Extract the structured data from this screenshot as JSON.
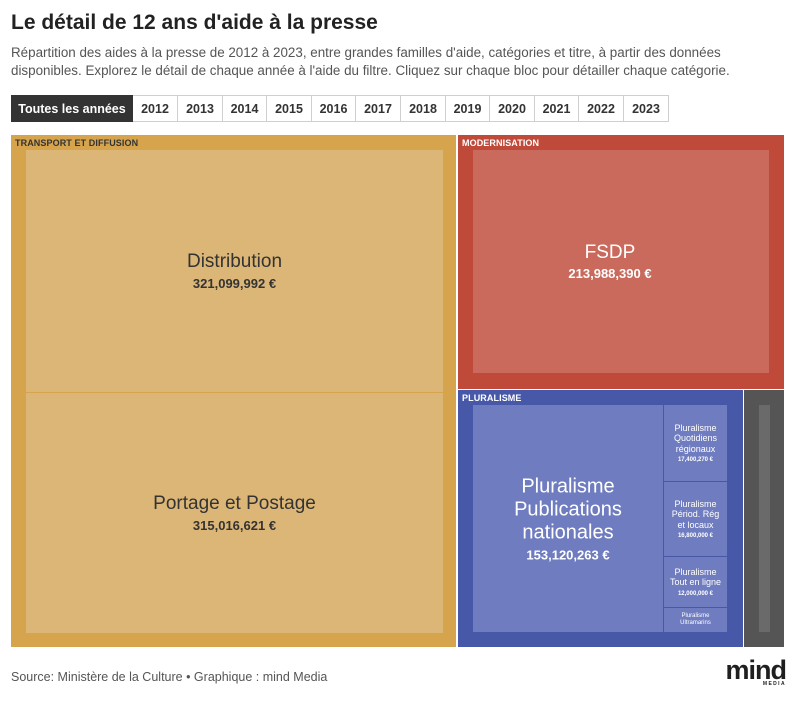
{
  "header": {
    "title": "Le détail de 12 ans d'aide à la presse",
    "subtitle": "Répartition des aides à la presse de 2012 à 2023, entre grandes familles d'aide, catégories et titre, à partir des données disponibles. Explorez le détail de chaque année à l'aide du filtre. Cliquez sur chaque bloc pour détailler chaque catégorie."
  },
  "filter": {
    "active_index": 0,
    "buttons": [
      "Toutes les années",
      "2012",
      "2013",
      "2014",
      "2015",
      "2016",
      "2017",
      "2018",
      "2019",
      "2020",
      "2021",
      "2022",
      "2023"
    ]
  },
  "chart_data": {
    "type": "treemap",
    "unit": "€",
    "groups": [
      {
        "name": "TRANSPORT ET DIFFUSION",
        "color": "#d6a44d",
        "leaf_color": "#dcb676",
        "children": [
          {
            "name": "Distribution",
            "value": 321099992,
            "value_label": "321,099,992 €"
          },
          {
            "name": "Portage et Postage",
            "value": 315016621,
            "value_label": "315,016,621 €"
          }
        ]
      },
      {
        "name": "MODERNISATION",
        "color": "#c04a3a",
        "leaf_color": "#c96a5d",
        "children": [
          {
            "name": "FSDP",
            "value": 213988390,
            "value_label": "213,988,390 €"
          },
          {
            "name": "",
            "value": null,
            "value_label": ""
          }
        ]
      },
      {
        "name": "PLURALISME",
        "color": "#4858a8",
        "leaf_color": "#6f7cbf",
        "children": [
          {
            "name": "Pluralisme Publications nationales",
            "value": 153120263,
            "value_label": "153,120,263 €"
          },
          {
            "name": "Pluralisme Quotidiens régionaux",
            "value": 17400270,
            "value_label": "17,400,270 €"
          },
          {
            "name": "Pluralisme Périod. Rég et locaux",
            "value": 16800000,
            "value_label": "16,800,000 €"
          },
          {
            "name": "Pluralisme Tout en ligne",
            "value": 12000000,
            "value_label": "12,000,000 €"
          },
          {
            "name": "Pluralisme Ultramarins",
            "value": null,
            "value_label": ""
          }
        ]
      },
      {
        "name": "",
        "color": "#555555",
        "leaf_color": "#6a6a6a",
        "children": [
          {
            "name": "",
            "value": null,
            "value_label": ""
          }
        ]
      }
    ]
  },
  "footer": {
    "source": "Source: Ministère de la Culture • Graphique : mind Media",
    "logo_word": "mind",
    "logo_sub": "MEDIA"
  }
}
